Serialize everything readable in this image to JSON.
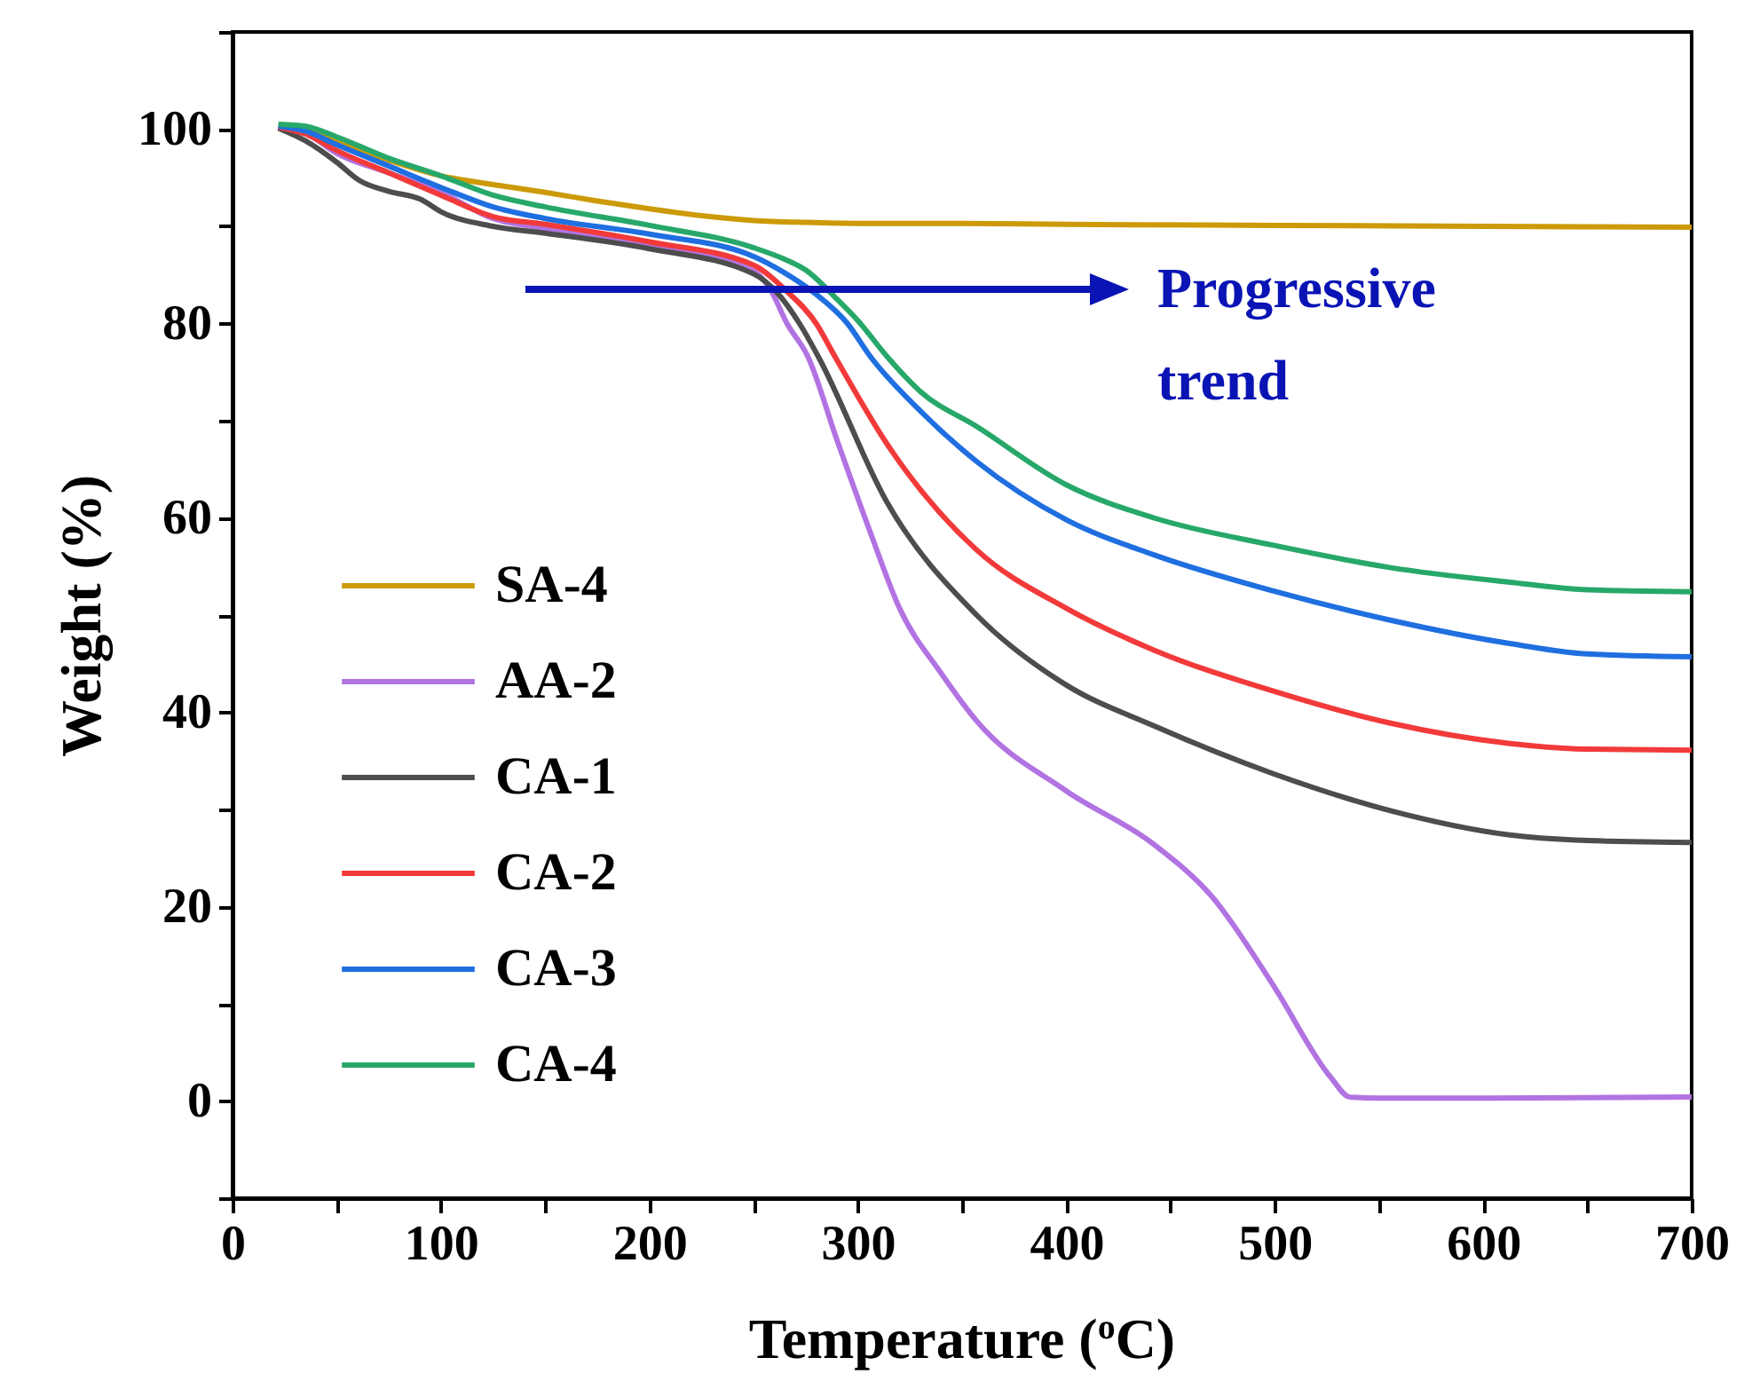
{
  "chart_data": {
    "type": "line",
    "xlabel": "Temperature ($^{o}$C)",
    "ylabel": "Weight (%)",
    "xlim": [
      0,
      700
    ],
    "ylim": [
      -10,
      110
    ],
    "xticks": [
      0,
      {
        "value": 50,
        "label": null
      },
      100,
      {
        "value": 150,
        "label": null
      },
      200,
      {
        "value": 250,
        "label": null
      },
      300,
      {
        "value": 350,
        "label": null
      },
      400,
      {
        "value": 450,
        "label": null
      },
      500,
      {
        "value": 550,
        "label": null
      },
      600,
      {
        "value": 650,
        "label": null
      },
      700
    ],
    "yticks": [
      {
        "value": -10,
        "label": null
      },
      0,
      {
        "value": 10,
        "label": null
      },
      20,
      {
        "value": 30,
        "label": null
      },
      40,
      {
        "value": 50,
        "label": null
      },
      60,
      {
        "value": 70,
        "label": null
      },
      80,
      {
        "value": 90,
        "label": null
      },
      100,
      {
        "value": 110,
        "label": null
      }
    ],
    "grid": false,
    "legend": "bottom left",
    "marker": "none",
    "line_style": "solid",
    "annotations": [
      "Progressive trend"
    ],
    "series": [
      {
        "name": "SA-4",
        "color": "#cc9a06",
        "x": [
          22,
          35,
          50,
          75,
          100,
          125,
          150,
          175,
          200,
          225,
          250,
          275,
          300,
          350,
          400,
          500,
          600,
          700
        ],
        "values": [
          100.2,
          99.8,
          98.7,
          96.8,
          95.2,
          94.3,
          93.5,
          92.6,
          91.8,
          91.1,
          90.6,
          90.4,
          90.3,
          90.3,
          90.2,
          90.1,
          90.0,
          89.9
        ]
      },
      {
        "name": "AA-2",
        "color": "#b273e2",
        "x": [
          22,
          35,
          50,
          75,
          100,
          125,
          150,
          200,
          250,
          258,
          266,
          276,
          290,
          306,
          320,
          340,
          357,
          400,
          442,
          470,
          499,
          527,
          536,
          550,
          600,
          700
        ],
        "values": [
          100.2,
          99.6,
          97.5,
          95.5,
          93.5,
          90.8,
          89.8,
          88.1,
          85.4,
          83.5,
          80,
          76.6,
          68,
          58.5,
          50.7,
          44,
          39.1,
          31.9,
          26.4,
          21,
          12,
          2.4,
          0.4,
          0.3,
          0.3,
          0.4
        ]
      },
      {
        "name": "CA-1",
        "color": "#4d4d4d",
        "x": [
          22,
          35,
          50,
          61,
          75,
          90,
          100,
          125,
          150,
          200,
          250,
          262,
          272,
          281,
          314,
          357,
          400,
          442,
          499,
          555,
          612,
          650,
          700
        ],
        "values": [
          100.1,
          98.8,
          96.6,
          94.7,
          93.6,
          92.8,
          91.5,
          90,
          89.3,
          87.7,
          85.1,
          83,
          80,
          76.6,
          61.6,
          50,
          42.8,
          38.6,
          33.7,
          29.9,
          27.4,
          26.8,
          26.6
        ]
      },
      {
        "name": "CA-2",
        "color": "#f23a3a",
        "x": [
          22,
          35,
          50,
          75,
          100,
          125,
          150,
          200,
          250,
          265,
          280,
          289,
          314,
          357,
          400,
          442,
          499,
          555,
          612,
          650,
          700
        ],
        "values": [
          100.2,
          99.5,
          97.8,
          95.5,
          93.2,
          91,
          90.2,
          88.4,
          86,
          83.5,
          80,
          76.6,
          67.6,
          56.7,
          50.7,
          46.4,
          42.2,
          38.9,
          36.8,
          36.2,
          36.1
        ]
      },
      {
        "name": "CA-3",
        "color": "#1f6fe0",
        "x": [
          22,
          35,
          50,
          75,
          100,
          125,
          150,
          200,
          250,
          265,
          280,
          295,
          306,
          330,
          357,
          400,
          442,
          499,
          555,
          612,
          650,
          700
        ],
        "values": [
          100.3,
          99.8,
          98.4,
          96.2,
          94,
          92,
          90.8,
          89.2,
          86.9,
          85.2,
          83,
          80,
          76.6,
          71,
          65.8,
          59.8,
          56.2,
          52.5,
          49.5,
          47.1,
          46,
          45.7
        ]
      },
      {
        "name": "CA-4",
        "color": "#27a86a",
        "x": [
          22,
          35,
          50,
          75,
          100,
          125,
          150,
          200,
          250,
          265,
          275,
          290,
          300,
          314,
          330,
          357,
          400,
          442,
          499,
          555,
          612,
          650,
          700
        ],
        "values": [
          100.5,
          100.3,
          99.2,
          97,
          95.2,
          93.2,
          92.0,
          90.1,
          87.8,
          86.6,
          85.5,
          82.5,
          80.3,
          76.6,
          73,
          69.4,
          63.4,
          60,
          57.2,
          54.9,
          53.4,
          52.6,
          52.4
        ]
      }
    ]
  }
}
